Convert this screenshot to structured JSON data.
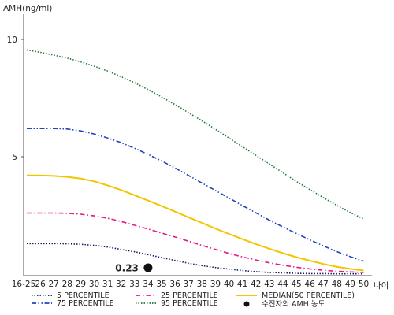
{
  "chart_data": {
    "type": "line",
    "ylabel": "AMH(ng/ml)",
    "xlabel": "나이",
    "categories": [
      "16-25",
      "26",
      "27",
      "28",
      "29",
      "30",
      "31",
      "32",
      "33",
      "34",
      "35",
      "36",
      "37",
      "38",
      "39",
      "40",
      "41",
      "42",
      "43",
      "44",
      "45",
      "46",
      "47",
      "48",
      "49",
      "50"
    ],
    "y_ticks": [
      "10",
      "5"
    ],
    "ylim": [
      0,
      11
    ],
    "series": [
      {
        "name": "5 PERCENTILE",
        "color": "#1a1a66",
        "style": "dotted",
        "values": [
          1.3,
          1.3,
          1.3,
          1.29,
          1.27,
          1.22,
          1.15,
          1.05,
          0.95,
          0.83,
          0.7,
          0.58,
          0.46,
          0.36,
          0.28,
          0.21,
          0.15,
          0.1,
          0.07,
          0.05,
          0.03,
          0.02,
          0.02,
          0.01,
          0.01,
          0.01
        ]
      },
      {
        "name": "25 PERCENTILE",
        "color": "#e6198c",
        "style": "dashdot",
        "values": [
          2.6,
          2.6,
          2.6,
          2.59,
          2.55,
          2.48,
          2.38,
          2.24,
          2.08,
          1.92,
          1.75,
          1.58,
          1.4,
          1.22,
          1.05,
          0.88,
          0.73,
          0.6,
          0.48,
          0.38,
          0.29,
          0.22,
          0.16,
          0.12,
          0.09,
          0.07
        ]
      },
      {
        "name": "MEDIAN(50 PERCENTILE)",
        "color": "#f2c500",
        "style": "solid",
        "values": [
          4.2,
          4.2,
          4.18,
          4.14,
          4.07,
          3.95,
          3.78,
          3.58,
          3.36,
          3.13,
          2.9,
          2.66,
          2.42,
          2.18,
          1.94,
          1.71,
          1.49,
          1.28,
          1.08,
          0.89,
          0.72,
          0.57,
          0.43,
          0.31,
          0.22,
          0.15
        ]
      },
      {
        "name": "75 PERCENTILE",
        "color": "#2244bb",
        "style": "dashdotdot",
        "values": [
          6.2,
          6.2,
          6.2,
          6.18,
          6.1,
          5.97,
          5.8,
          5.6,
          5.36,
          5.1,
          4.82,
          4.52,
          4.2,
          3.88,
          3.56,
          3.24,
          2.92,
          2.61,
          2.3,
          2.01,
          1.73,
          1.46,
          1.2,
          0.96,
          0.74,
          0.55
        ]
      },
      {
        "name": "95 PERCENTILE",
        "color": "#1f7a3a",
        "style": "dotted",
        "values": [
          9.55,
          9.45,
          9.33,
          9.2,
          9.04,
          8.86,
          8.65,
          8.41,
          8.15,
          7.86,
          7.55,
          7.22,
          6.88,
          6.53,
          6.17,
          5.8,
          5.43,
          5.06,
          4.69,
          4.32,
          3.95,
          3.6,
          3.26,
          2.93,
          2.62,
          2.35
        ]
      }
    ],
    "patient_point": {
      "label": "0.23",
      "legend": "수진자의 AMH 농도",
      "x_category": "34",
      "value": 0.23
    }
  }
}
